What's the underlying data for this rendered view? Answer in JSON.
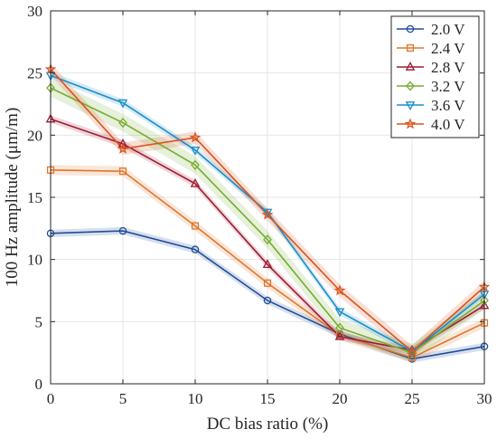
{
  "chart_data": {
    "type": "line",
    "xlabel": "DC bias ratio (%)",
    "ylabel": "100 Hz amplitude (μm/m)",
    "xlim": [
      0,
      30
    ],
    "ylim": [
      0,
      30
    ],
    "xticks": [
      0,
      5,
      10,
      15,
      20,
      25,
      30
    ],
    "yticks": [
      0,
      5,
      10,
      15,
      20,
      25,
      30
    ],
    "x": [
      0,
      5,
      10,
      15,
      20,
      25,
      30
    ],
    "grid": true,
    "legend_position": "top-right",
    "series": [
      {
        "name": "2.0 V",
        "color": "#1f4e99",
        "marker": "circle",
        "values": [
          12.1,
          12.3,
          10.8,
          6.7,
          4.0,
          2.0,
          3.0
        ],
        "band": 0.3
      },
      {
        "name": "2.4 V",
        "color": "#e0762a",
        "marker": "square",
        "values": [
          17.2,
          17.1,
          12.7,
          8.1,
          3.9,
          2.1,
          4.9
        ],
        "band": 0.4
      },
      {
        "name": "2.8 V",
        "color": "#9e1b32",
        "marker": "triangle-up",
        "values": [
          21.3,
          19.3,
          16.1,
          9.6,
          3.8,
          2.7,
          6.3
        ],
        "band": 0.3
      },
      {
        "name": "3.2 V",
        "color": "#77ac30",
        "marker": "diamond",
        "values": [
          23.8,
          21.0,
          17.6,
          11.6,
          4.5,
          2.5,
          6.7
        ],
        "band": 0.7
      },
      {
        "name": "3.6 V",
        "color": "#1a8fc9",
        "marker": "triangle-down",
        "values": [
          24.8,
          22.6,
          18.8,
          13.8,
          5.8,
          2.6,
          7.2
        ],
        "band": 0.3
      },
      {
        "name": "4.0 V",
        "color": "#d9531e",
        "marker": "star",
        "values": [
          25.3,
          18.9,
          19.8,
          13.6,
          7.5,
          2.6,
          7.8
        ],
        "band": 0.5
      }
    ]
  }
}
